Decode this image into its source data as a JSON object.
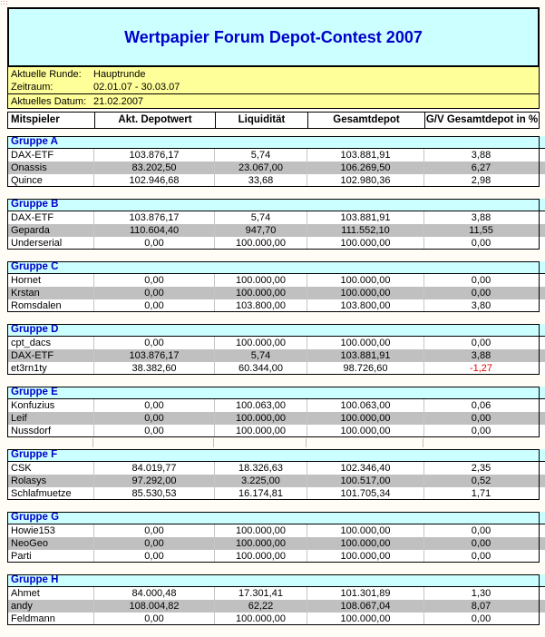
{
  "page": {
    "title": "Wertpapier Forum Depot-Contest 2007"
  },
  "info": {
    "round_label": "Aktuelle Runde:",
    "round_value": "Hauptrunde",
    "period_label": "Zeitraum:",
    "period_value": "02.01.07 - 30.03.07",
    "date_label": "Aktuelles Datum:",
    "date_value": "21.02.2007"
  },
  "columns": [
    "Mitspieler",
    "Akt. Depotwert",
    "Liquidität",
    "Gesamtdepot",
    "G/V Gesamtdepot in %"
  ],
  "colors": {
    "header_bg": "#ccffff",
    "band_bg": "#ffff99",
    "row_alt_bg": "#c0c0c0",
    "title_text": "#0000cc",
    "negative_text": "#e60000",
    "border": "#000000"
  },
  "icons": {
    "corner_artifact": "red-dotted-artifact-icon"
  },
  "groups": [
    {
      "name": "Gruppe A",
      "rows": [
        [
          "DAX-ETF",
          "103.876,17",
          "5,74",
          "103.881,91",
          "3,88"
        ],
        [
          "Onassis",
          "83.202,50",
          "23.067,00",
          "106.269,50",
          "6,27"
        ],
        [
          "Quince",
          "102.946,68",
          "33,68",
          "102.980,36",
          "2,98"
        ]
      ]
    },
    {
      "name": "Gruppe B",
      "rows": [
        [
          "DAX-ETF",
          "103.876,17",
          "5,74",
          "103.881,91",
          "3,88"
        ],
        [
          "Geparda",
          "110.604,40",
          "947,70",
          "111.552,10",
          "11,55"
        ],
        [
          "Underserial",
          "0,00",
          "100.000,00",
          "100.000,00",
          "0,00"
        ]
      ]
    },
    {
      "name": "Gruppe C",
      "rows": [
        [
          "Hornet",
          "0,00",
          "100.000,00",
          "100.000,00",
          "0,00"
        ],
        [
          "Krstan",
          "0,00",
          "100.000,00",
          "100.000,00",
          "0,00"
        ],
        [
          "Romsdalen",
          "0,00",
          "103.800,00",
          "103.800,00",
          "3,80"
        ]
      ]
    },
    {
      "name": "Gruppe D",
      "rows": [
        [
          "cpt_dacs",
          "0,00",
          "100.000,00",
          "100.000,00",
          "0,00"
        ],
        [
          "DAX-ETF",
          "103.876,17",
          "5,74",
          "103.881,91",
          "3,88"
        ],
        [
          "et3rn1ty",
          "38.382,60",
          "60.344,00",
          "98.726,60",
          "-1,27"
        ]
      ]
    },
    {
      "name": "Gruppe E",
      "gap_gridline_stubs": true,
      "rows": [
        [
          "Konfuzius",
          "0,00",
          "100.063,00",
          "100.063,00",
          "0,06"
        ],
        [
          "Leif",
          "0,00",
          "100.000,00",
          "100.000,00",
          "0,00"
        ],
        [
          "Nussdorf",
          "0,00",
          "100.000,00",
          "100.000,00",
          "0,00"
        ]
      ]
    },
    {
      "name": "Gruppe F",
      "rows": [
        [
          "CSK",
          "84.019,77",
          "18.326,63",
          "102.346,40",
          "2,35"
        ],
        [
          "Rolasys",
          "97.292,00",
          "3.225,00",
          "100.517,00",
          "0,52"
        ],
        [
          "Schlafmuetze",
          "85.530,53",
          "16.174,81",
          "101.705,34",
          "1,71"
        ]
      ]
    },
    {
      "name": "Gruppe G",
      "rows": [
        [
          "Howie153",
          "0,00",
          "100.000,00",
          "100.000,00",
          "0,00"
        ],
        [
          "NeoGeo",
          "0,00",
          "100.000,00",
          "100.000,00",
          "0,00"
        ],
        [
          "Parti",
          "0,00",
          "100.000,00",
          "100.000,00",
          "0,00"
        ]
      ]
    },
    {
      "name": "Gruppe H",
      "rows": [
        [
          "Ahmet",
          "84.000,48",
          "17.301,41",
          "101.301,89",
          "1,30"
        ],
        [
          "andy",
          "108.004,82",
          "62,22",
          "108.067,04",
          "8,07"
        ],
        [
          "Feldmann",
          "0,00",
          "100.000,00",
          "100.000,00",
          "0,00"
        ]
      ]
    }
  ]
}
